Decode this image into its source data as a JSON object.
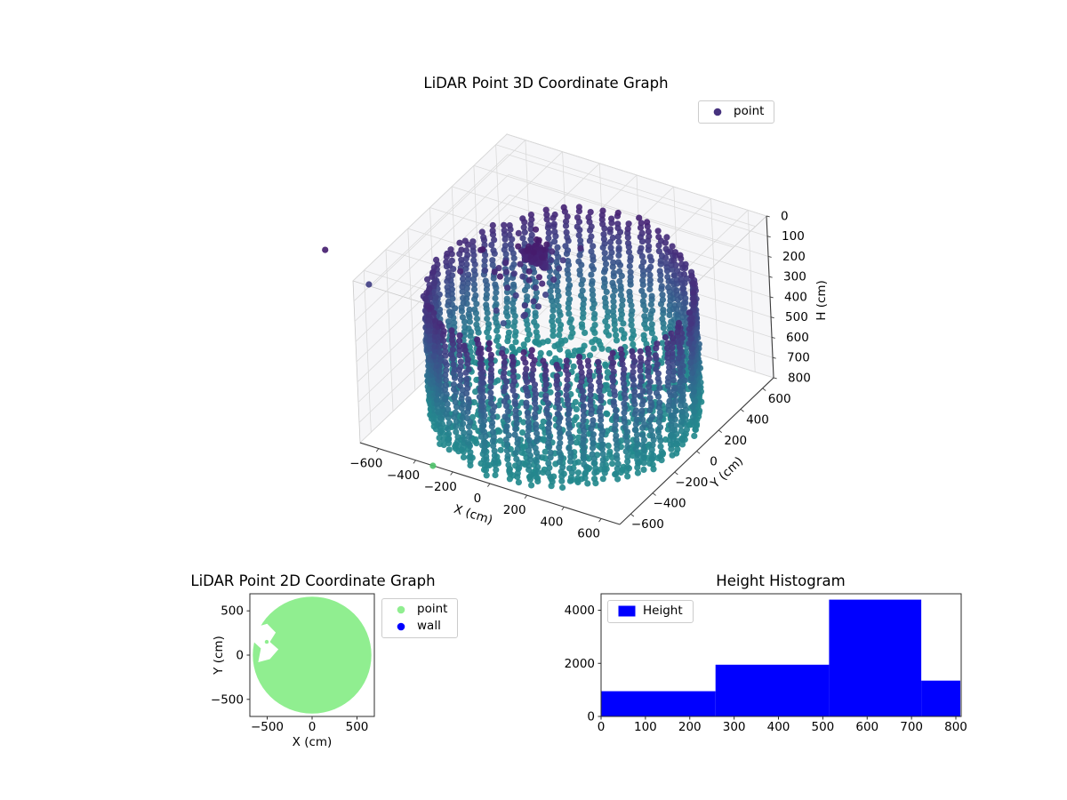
{
  "chart_data": [
    {
      "type": "scatter3d",
      "title": "LiDAR Point 3D Coordinate Graph",
      "xlabel": "X (cm)",
      "ylabel": "Y (cm)",
      "zlabel": "H (cm)",
      "xlim": [
        -700,
        700
      ],
      "ylim": [
        -700,
        700
      ],
      "zlim": [
        0,
        800
      ],
      "z_axis_inverted": true,
      "xticks": [
        -600,
        -400,
        -200,
        0,
        200,
        400,
        600
      ],
      "yticks": [
        -600,
        -400,
        -200,
        0,
        200,
        400,
        600
      ],
      "zticks": [
        0,
        100,
        200,
        300,
        400,
        500,
        600,
        700,
        800
      ],
      "grid": true,
      "legend": [
        {
          "label": "point",
          "marker_color": "#46327e"
        }
      ],
      "colormap": "viridis",
      "color_by": "height",
      "point_cloud": {
        "shape": "cylindrical room wall scan with floor disk",
        "wall": {
          "radius_cm": 625,
          "columns": 76,
          "top_h_cm": [
            150,
            250
          ],
          "bottom_h_cm": 810,
          "vertical_step_cm": 24
        },
        "floor": {
          "h_cm": 800,
          "radius_cm": 610,
          "ring_step_cm": 45
        },
        "cluster": {
          "center": [
            -220,
            130,
            160
          ],
          "spread": [
            70,
            70,
            55
          ],
          "count": 90
        },
        "sparse_upper": {
          "x_range": [
            -520,
            -80
          ],
          "y_range": [
            -160,
            360
          ],
          "h_range": [
            120,
            330
          ],
          "count": 40
        },
        "outliers": [
          [
            -1070,
            -340,
            140
          ],
          [
            -889,
            -260,
            300
          ],
          [
            -620,
            -200,
            1150
          ],
          [
            -250,
            -120,
            380
          ],
          [
            -180,
            -250,
            420
          ],
          [
            -100,
            -50,
            290
          ]
        ]
      }
    },
    {
      "type": "scatter",
      "title": "LiDAR Point 2D Coordinate Graph",
      "xlabel": "X (cm)",
      "ylabel": "Y (cm)",
      "xlim": [
        -693,
        693
      ],
      "ylim": [
        -693,
        693
      ],
      "xticks": [
        -500,
        0,
        500
      ],
      "yticks": [
        -500,
        0,
        500
      ],
      "legend": [
        {
          "label": "point",
          "color": "#90ee90"
        },
        {
          "label": "wall",
          "color": "#0000ff"
        }
      ],
      "disk": {
        "center": [
          0,
          0
        ],
        "radius_cm": 660,
        "color": "#90ee90"
      },
      "shadow_notch": [
        [
          -650,
          310
        ],
        [
          -500,
          355
        ],
        [
          -405,
          255
        ],
        [
          -470,
          150
        ],
        [
          -375,
          65
        ],
        [
          -470,
          -45
        ],
        [
          -600,
          -80
        ],
        [
          -570,
          75
        ],
        [
          -660,
          160
        ]
      ],
      "stray_point": [
        -505,
        150
      ]
    },
    {
      "type": "bar",
      "title": "Height Histogram",
      "legend": [
        {
          "label": "Height",
          "color": "#0000ff"
        }
      ],
      "bar_color": "#0000ff",
      "bin_edges": [
        0,
        258,
        514,
        722,
        810
      ],
      "counts": [
        950,
        1950,
        4400,
        1350
      ],
      "xticks": [
        0,
        100,
        200,
        300,
        400,
        500,
        600,
        700,
        800
      ],
      "yticks": [
        0,
        2000,
        4000
      ],
      "xlim": [
        0,
        812
      ],
      "ylim": [
        0,
        4620
      ]
    }
  ]
}
